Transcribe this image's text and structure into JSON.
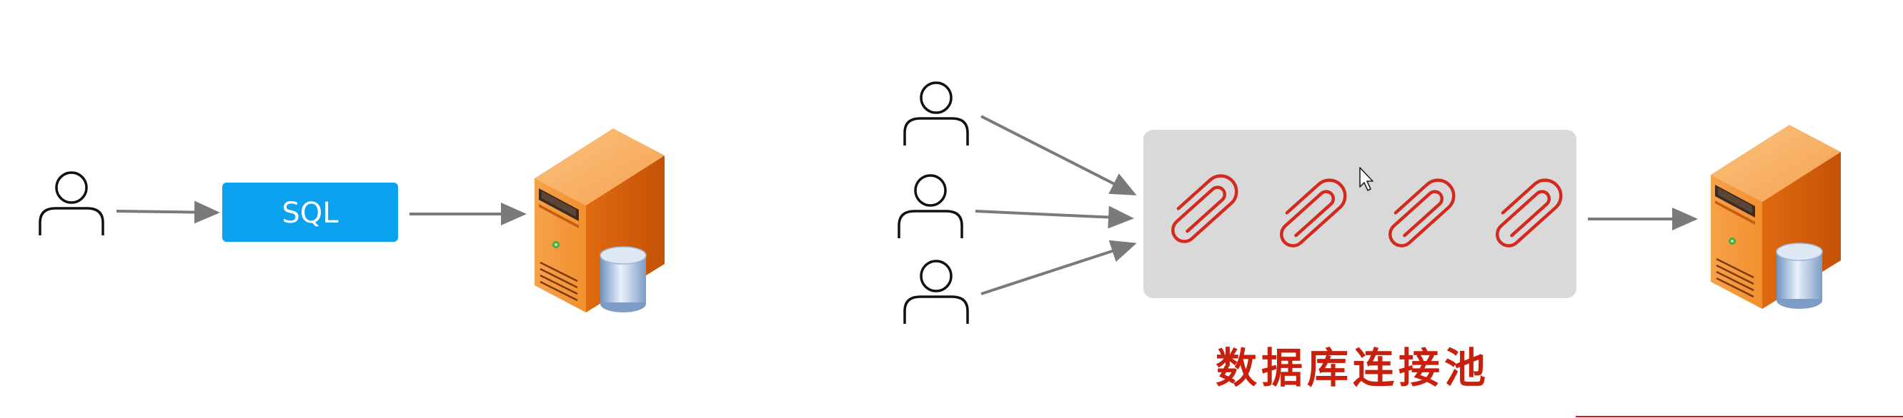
{
  "left_diagram": {
    "sql_label": "SQL"
  },
  "right_diagram": {
    "pool_label": "数据库连接池",
    "connection_count": 4,
    "client_count": 3
  },
  "colors": {
    "sql_box": "#0aa2ee",
    "pool_box": "#d9d9d9",
    "arrow": "#7a7a7a",
    "paperclip": "#d42a1e",
    "pool_label": "#c8200c",
    "server_orange": "#f08a2a"
  }
}
